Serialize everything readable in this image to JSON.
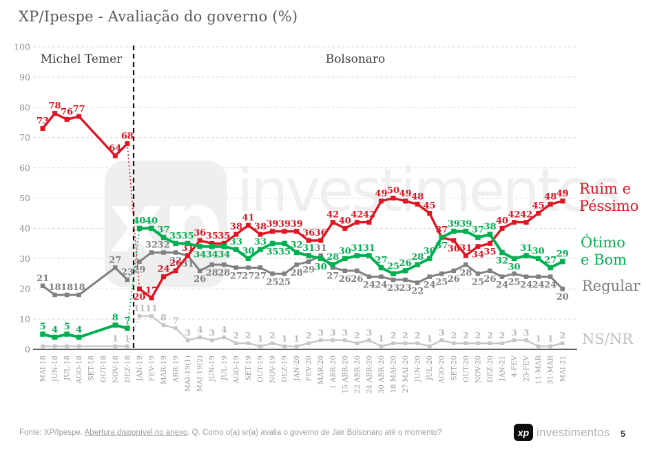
{
  "title": "XP/Ipespe - Avaliação do governo (%)",
  "era_labels": {
    "temer": "Michel Temer",
    "bolsonaro": "Bolsonaro"
  },
  "watermark": {
    "tile_text": "xp",
    "text": "investimentos"
  },
  "footer": {
    "source_prefix": "Fonte: XP/Ipespe. ",
    "source_link": "Abertura disponível no anexo",
    "source_suffix": ". Q. Como o(a) sr(a) avalia o governo de Jair Bolsonaro até o momento?",
    "page_number": "5",
    "logo_tile": "xp",
    "logo_text": "investimentos"
  },
  "chart_data": {
    "type": "line",
    "title": "XP/Ipespe - Avaliação do governo (%)",
    "ylim": [
      0,
      100
    ],
    "yticks": [
      0,
      10,
      20,
      30,
      40,
      50,
      60,
      70,
      80,
      90,
      100
    ],
    "grid": "horizontal-dashed",
    "legend_position": "right",
    "separator_after_category": "DEZ-18",
    "categories": [
      "MAI-18",
      "JUN-18",
      "JUL-18",
      "AGO-18",
      "SET-18",
      "OUT-18",
      "NOV-18",
      "DEZ-18",
      "JAN-19",
      "FEV-19",
      "MAR-19",
      "ABR-19",
      "MAI-19(1)",
      "MAI-19(2)",
      "JUN-19",
      "JUL-19",
      "AGO-19",
      "SET-19",
      "OUT-19",
      "NOV-19",
      "DEZ-19",
      "JAN-20",
      "FEV-20",
      "MAR-20",
      "1 ABR-20",
      "15 ABR-20",
      "22 ABR-20",
      "24 ABR-20",
      "30 ABR-20",
      "18 MAI-20",
      "27 MAI-20",
      "JUN-20",
      "JUL-20",
      "AGO-20",
      "SET-20",
      "OUT-20",
      "NOV-20",
      "DEZ-20",
      "JAN-21",
      "4-FEV",
      "23-FEV",
      "11-MAR",
      "31-MAR",
      "MAI-21"
    ],
    "series": [
      {
        "name": "Ruim e Péssimo",
        "legend_label": "Ruim e\nPéssimo",
        "color": "#e01523",
        "values": [
          73,
          78,
          76,
          77,
          null,
          null,
          64,
          68,
          20,
          17,
          24,
          26,
          31,
          36,
          35,
          35,
          38,
          41,
          38,
          39,
          39,
          39,
          36,
          36,
          42,
          40,
          42,
          42,
          49,
          50,
          49,
          48,
          45,
          37,
          36,
          31,
          34,
          35,
          40,
          42,
          42,
          45,
          48,
          49
        ]
      },
      {
        "name": "Ótimo e Bom",
        "legend_label": "Ótimo\ne Bom",
        "color": "#00b050",
        "values": [
          5,
          4,
          5,
          4,
          null,
          null,
          8,
          7,
          40,
          40,
          37,
          35,
          35,
          34,
          34,
          34,
          33,
          30,
          33,
          35,
          35,
          32,
          31,
          30,
          28,
          30,
          31,
          31,
          27,
          25,
          26,
          28,
          30,
          37,
          39,
          39,
          37,
          38,
          32,
          30,
          31,
          30,
          27,
          29
        ]
      },
      {
        "name": "Regular",
        "legend_label": "Regular",
        "color": "#808080",
        "values": [
          21,
          18,
          18,
          18,
          null,
          null,
          27,
          23,
          29,
          32,
          32,
          32,
          31,
          26,
          28,
          28,
          27,
          27,
          27,
          25,
          25,
          28,
          29,
          31,
          27,
          26,
          26,
          24,
          24,
          23,
          23,
          22,
          24,
          25,
          26,
          28,
          25,
          26,
          24,
          25,
          24,
          24,
          24,
          20
        ]
      },
      {
        "name": "NS/NR",
        "legend_label": "NS/NR",
        "color": "#c6c6c6",
        "values": [
          1,
          1,
          1,
          1,
          null,
          null,
          1,
          1,
          11,
          11,
          8,
          7,
          3,
          4,
          3,
          4,
          2,
          2,
          1,
          2,
          1,
          1,
          2,
          3,
          3,
          3,
          2,
          3,
          1,
          2,
          2,
          2,
          1,
          3,
          2,
          2,
          2,
          2,
          2,
          3,
          3,
          1,
          1,
          2
        ]
      }
    ]
  }
}
